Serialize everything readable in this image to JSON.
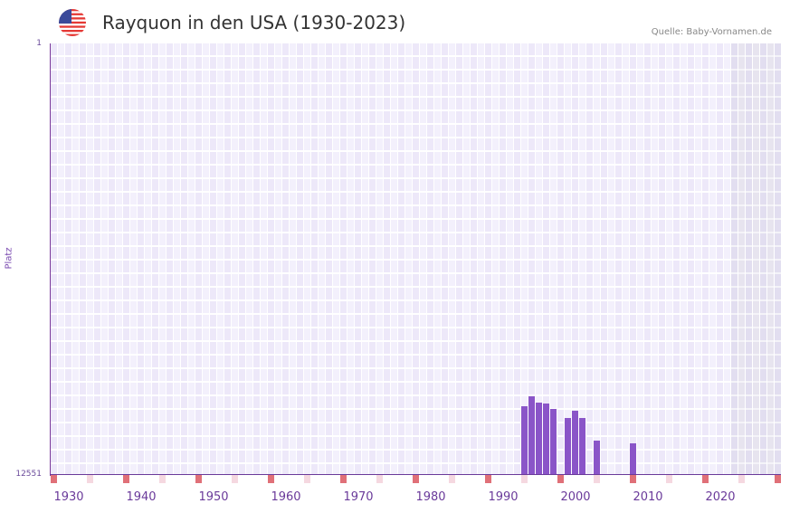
{
  "header": {
    "title": "Rayquon in den USA (1930-2023)",
    "source": "Quelle: Baby-Vornamen.de",
    "flag_icon": "us-flag-icon"
  },
  "colors": {
    "bar": "#8a55c8",
    "decade_marker": "#e07078",
    "half_decade_marker": "#f5d8e0",
    "axis": "#6a3a9a"
  },
  "chart_data": {
    "type": "bar",
    "title": "Rayquon in den USA (1930-2023)",
    "xlabel": "",
    "ylabel": "Platz",
    "y_inverted": true,
    "ylim": [
      1,
      12551
    ],
    "xlim": [
      1928,
      2028
    ],
    "y_ticks": [
      "1",
      "12551"
    ],
    "x_ticks": [
      "1930",
      "1940",
      "1950",
      "1960",
      "1970",
      "1980",
      "1990",
      "2000",
      "2010",
      "2020"
    ],
    "grid": true,
    "categories": [
      1993,
      1994,
      1995,
      1996,
      1997,
      1999,
      2000,
      2001,
      2003,
      2008
    ],
    "values": [
      10551,
      10262,
      10446,
      10473,
      10630,
      10893,
      10683,
      10893,
      11551,
      11630
    ]
  },
  "axes": {
    "y_top": "1",
    "y_bottom": "12551",
    "y_name": "Platz",
    "x_labels": [
      "1930",
      "1940",
      "1950",
      "1960",
      "1970",
      "1980",
      "1990",
      "2000",
      "2010",
      "2020"
    ]
  }
}
